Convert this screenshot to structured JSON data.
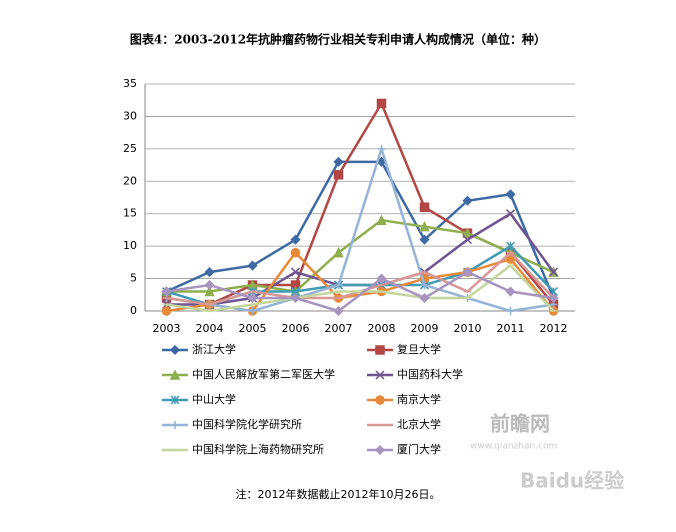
{
  "chart_data": {
    "type": "line",
    "title": "图表4：2003-2012年抗肿瘤药物行业相关专利申请人构成情况（单位：种）",
    "note": "注：2012年数据截止2012年10月26日。",
    "categories": [
      "2003",
      "2004",
      "2005",
      "2006",
      "2007",
      "2008",
      "2009",
      "2010",
      "2011",
      "2012"
    ],
    "ylim": [
      0,
      35
    ],
    "yticks": [
      0,
      5,
      10,
      15,
      20,
      25,
      30,
      35
    ],
    "grid": true,
    "series": [
      {
        "name": "浙江大学",
        "color": "#3d6aa5",
        "marker": "diamond",
        "values": [
          3,
          6,
          7,
          11,
          23,
          23,
          11,
          17,
          18,
          2
        ]
      },
      {
        "name": "复旦大学",
        "color": "#b24745",
        "marker": "square",
        "values": [
          2,
          1,
          4,
          4,
          21,
          32,
          16,
          12,
          9,
          1
        ]
      },
      {
        "name": "中国人民解放军第二军医大学",
        "color": "#8fae4e",
        "marker": "triangle",
        "values": [
          3,
          3,
          4,
          3,
          9,
          14,
          13,
          12,
          9,
          6
        ]
      },
      {
        "name": "中国药科大学",
        "color": "#6f5491",
        "marker": "x",
        "values": [
          1,
          1,
          2,
          6,
          4,
          4,
          6,
          11,
          15,
          6
        ]
      },
      {
        "name": "中山大学",
        "color": "#3f9bb4",
        "marker": "asterisk",
        "values": [
          3,
          1,
          3,
          3,
          4,
          4,
          4,
          6,
          10,
          3
        ]
      },
      {
        "name": "南京大学",
        "color": "#e8893a",
        "marker": "circle",
        "values": [
          0,
          1,
          0,
          9,
          2,
          3,
          5,
          6,
          8,
          0
        ]
      },
      {
        "name": "中国科学院化学研究所",
        "color": "#95b3d7",
        "marker": "plus",
        "values": [
          2,
          1,
          0,
          2,
          4,
          25,
          4,
          2,
          0,
          1
        ]
      },
      {
        "name": "北京大学",
        "color": "#d99795",
        "marker": "dash",
        "values": [
          2,
          1,
          3,
          2,
          2,
          4,
          6,
          3,
          9,
          2
        ]
      },
      {
        "name": "中国科学院上海药物研究所",
        "color": "#c3d69b",
        "marker": "dash",
        "values": [
          1,
          0,
          1,
          2,
          3,
          3,
          2,
          2,
          7,
          0
        ]
      },
      {
        "name": "厦门大学",
        "color": "#a795c0",
        "marker": "diamond",
        "values": [
          3,
          4,
          2,
          2,
          0,
          5,
          2,
          6,
          3,
          2
        ]
      }
    ],
    "watermarks": [
      "前瞻网",
      "www.qianzhan.com",
      "Baidu经验"
    ]
  }
}
